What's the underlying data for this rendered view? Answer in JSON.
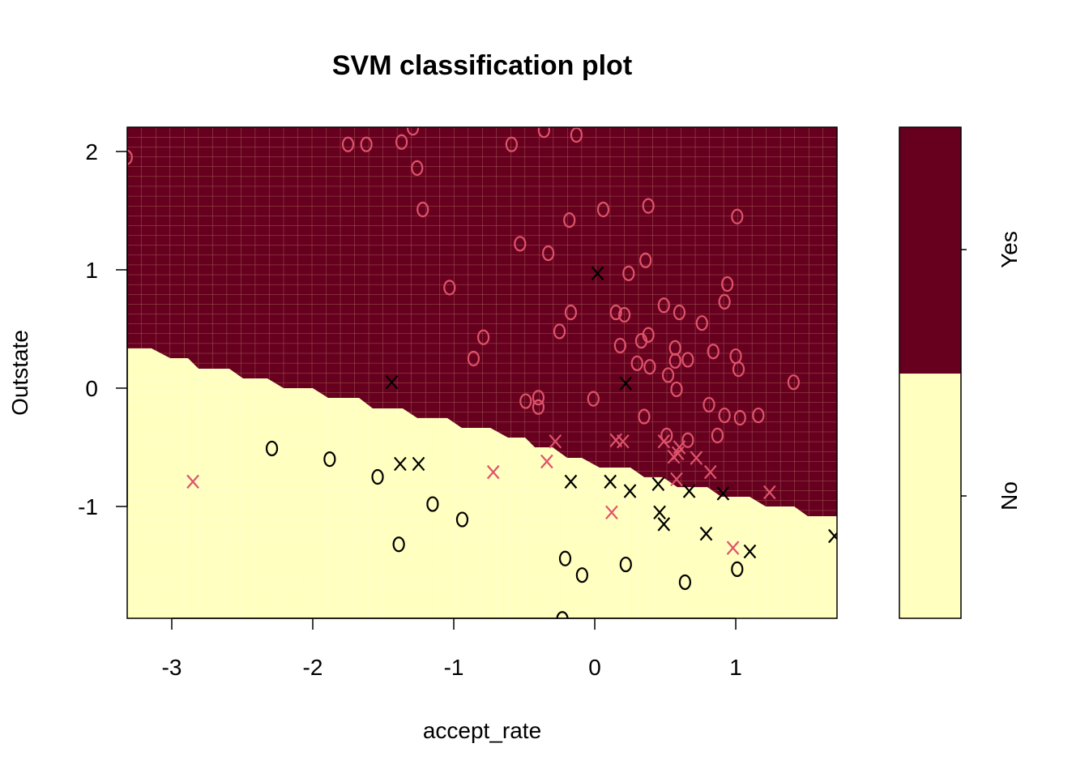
{
  "chart_data": {
    "type": "scatter",
    "title": "SVM classification plot",
    "xlabel": "accept_rate",
    "ylabel": "Outstate",
    "xlim": [
      -3.316,
      1.718
    ],
    "ylim": [
      -1.945,
      2.205
    ],
    "xticks": [
      -3,
      -2,
      -1,
      0,
      1
    ],
    "yticks": [
      -1,
      0,
      1,
      2
    ],
    "grid": false,
    "colors": {
      "yes_region": "#67001F",
      "no_region": "#FFFFBF",
      "yes_points": "#DF536B",
      "no_points": "#000000"
    },
    "legend": {
      "placement": "right",
      "labels": [
        "Yes",
        "No"
      ],
      "split": 0.5
    },
    "decision_boundary": [
      [
        -3.316,
        0.336
      ],
      [
        -3.144,
        0.336
      ],
      [
        -3.011,
        0.253
      ],
      [
        -2.885,
        0.253
      ],
      [
        -2.81,
        0.164
      ],
      [
        -2.592,
        0.164
      ],
      [
        -2.494,
        0.082
      ],
      [
        -2.322,
        0.082
      ],
      [
        -2.207,
        0
      ],
      [
        -2.0,
        0
      ],
      [
        -1.891,
        -0.082
      ],
      [
        -1.672,
        -0.082
      ],
      [
        -1.575,
        -0.171
      ],
      [
        -1.362,
        -0.171
      ],
      [
        -1.259,
        -0.253
      ],
      [
        -1.046,
        -0.253
      ],
      [
        -0.943,
        -0.336
      ],
      [
        -0.741,
        -0.336
      ],
      [
        -0.615,
        -0.418
      ],
      [
        -0.494,
        -0.418
      ],
      [
        -0.425,
        -0.5
      ],
      [
        -0.299,
        -0.5
      ],
      [
        -0.195,
        -0.589
      ],
      [
        -0.092,
        -0.589
      ],
      [
        0.034,
        -0.671
      ],
      [
        0.253,
        -0.671
      ],
      [
        0.351,
        -0.753
      ],
      [
        0.483,
        -0.753
      ],
      [
        0.586,
        -0.836
      ],
      [
        0.799,
        -0.836
      ],
      [
        0.897,
        -0.918
      ],
      [
        1.098,
        -0.918
      ],
      [
        1.213,
        -1.0
      ],
      [
        1.414,
        -1.0
      ],
      [
        1.511,
        -1.082
      ],
      [
        1.718,
        -1.082
      ]
    ],
    "series": [
      {
        "name": "Yes (non-support)",
        "marker": "o",
        "color": "#DF536B",
        "points": [
          [
            -3.32,
            1.95
          ],
          [
            -1.75,
            2.06
          ],
          [
            -1.62,
            2.06
          ],
          [
            -1.37,
            2.08
          ],
          [
            -1.29,
            2.2
          ],
          [
            -1.26,
            1.86
          ],
          [
            -1.22,
            1.51
          ],
          [
            -0.59,
            2.06
          ],
          [
            -0.36,
            2.18
          ],
          [
            -0.13,
            2.14
          ],
          [
            -0.53,
            1.22
          ],
          [
            -0.33,
            1.14
          ],
          [
            -0.18,
            1.42
          ],
          [
            0.06,
            1.51
          ],
          [
            0.38,
            1.54
          ],
          [
            1.01,
            1.45
          ],
          [
            -1.03,
            0.85
          ],
          [
            -0.79,
            0.43
          ],
          [
            -0.86,
            0.25
          ],
          [
            -0.25,
            0.48
          ],
          [
            -0.17,
            0.64
          ],
          [
            0.15,
            0.64
          ],
          [
            0.21,
            0.62
          ],
          [
            0.24,
            0.97
          ],
          [
            0.36,
            1.08
          ],
          [
            0.38,
            0.45
          ],
          [
            0.18,
            0.36
          ],
          [
            0.3,
            0.21
          ],
          [
            0.39,
            0.18
          ],
          [
            0.33,
            0.4
          ],
          [
            0.94,
            0.88
          ],
          [
            0.92,
            0.73
          ],
          [
            0.76,
            0.55
          ],
          [
            0.6,
            0.64
          ],
          [
            0.49,
            0.7
          ],
          [
            0.57,
            0.34
          ],
          [
            0.66,
            0.24
          ],
          [
            0.57,
            0.23
          ],
          [
            0.52,
            0.11
          ],
          [
            0.58,
            -0.01
          ],
          [
            0.84,
            0.31
          ],
          [
            1.0,
            0.27
          ],
          [
            1.02,
            0.16
          ],
          [
            1.41,
            0.05
          ],
          [
            -0.49,
            -0.11
          ],
          [
            -0.4,
            -0.08
          ],
          [
            -0.4,
            -0.16
          ],
          [
            -0.01,
            -0.09
          ],
          [
            0.35,
            -0.24
          ],
          [
            0.81,
            -0.14
          ],
          [
            0.92,
            -0.23
          ],
          [
            1.03,
            -0.25
          ],
          [
            1.16,
            -0.23
          ],
          [
            0.51,
            -0.4
          ],
          [
            0.66,
            -0.44
          ],
          [
            0.87,
            -0.4
          ]
        ]
      },
      {
        "name": "Yes (support vector)",
        "marker": "x",
        "color": "#DF536B",
        "points": [
          [
            -2.85,
            -0.79
          ],
          [
            -0.72,
            -0.71
          ],
          [
            -0.34,
            -0.62
          ],
          [
            -0.28,
            -0.45
          ],
          [
            0.15,
            -0.44
          ],
          [
            0.2,
            -0.45
          ],
          [
            0.49,
            -0.45
          ],
          [
            0.59,
            -0.55
          ],
          [
            0.6,
            -0.5
          ],
          [
            0.56,
            -0.58
          ],
          [
            0.72,
            -0.59
          ],
          [
            0.82,
            -0.71
          ],
          [
            0.58,
            -0.77
          ],
          [
            0.12,
            -1.05
          ],
          [
            1.24,
            -0.88
          ],
          [
            0.98,
            -1.35
          ]
        ]
      },
      {
        "name": "No (support vector)",
        "marker": "x",
        "color": "#000000",
        "points": [
          [
            0.02,
            0.97
          ],
          [
            -1.44,
            0.05
          ],
          [
            0.22,
            0.04
          ],
          [
            -1.38,
            -0.64
          ],
          [
            -1.25,
            -0.64
          ],
          [
            -0.17,
            -0.79
          ],
          [
            0.11,
            -0.79
          ],
          [
            0.25,
            -0.87
          ],
          [
            0.45,
            -0.81
          ],
          [
            0.67,
            -0.87
          ],
          [
            0.91,
            -0.89
          ],
          [
            0.46,
            -1.05
          ],
          [
            0.49,
            -1.15
          ],
          [
            0.79,
            -1.23
          ],
          [
            1.1,
            -1.38
          ],
          [
            1.7,
            -1.25
          ]
        ]
      },
      {
        "name": "No (non-support)",
        "marker": "o",
        "color": "#000000",
        "points": [
          [
            -2.29,
            -0.51
          ],
          [
            -1.88,
            -0.6
          ],
          [
            -1.54,
            -0.75
          ],
          [
            -1.15,
            -0.98
          ],
          [
            -0.94,
            -1.11
          ],
          [
            -1.39,
            -1.32
          ],
          [
            -0.21,
            -1.44
          ],
          [
            -0.09,
            -1.58
          ],
          [
            0.22,
            -1.49
          ],
          [
            0.64,
            -1.64
          ],
          [
            1.01,
            -1.53
          ],
          [
            -0.23,
            -1.95
          ]
        ]
      }
    ]
  }
}
